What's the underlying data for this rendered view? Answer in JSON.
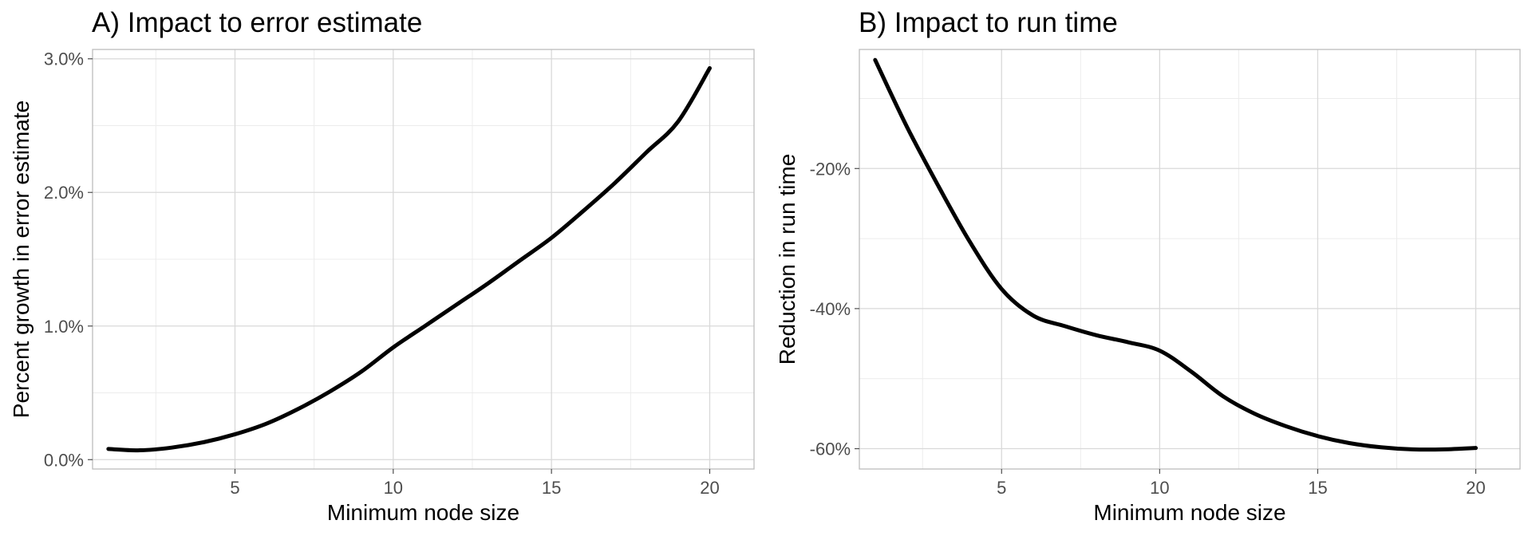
{
  "chart_data": [
    {
      "type": "line",
      "title": "A) Impact to error estimate",
      "xlabel": "Minimum node size",
      "ylabel": "Percent growth in error estimate",
      "xlim": [
        0.5,
        21.4
      ],
      "ylim": [
        -0.0007,
        0.0307
      ],
      "x_ticks": [
        5,
        10,
        15,
        20
      ],
      "x_tick_labels": [
        "5",
        "10",
        "15",
        "20"
      ],
      "y_ticks": [
        0,
        0.01,
        0.02,
        0.03
      ],
      "y_tick_labels": [
        "0.0%",
        "1.0%",
        "2.0%",
        "3.0%"
      ],
      "x_minor_ticks": [
        2.5,
        7.5,
        12.5,
        17.5
      ],
      "y_minor_ticks": [
        0.005,
        0.015,
        0.025
      ],
      "grid": true,
      "series": [
        {
          "color": "#000000",
          "x": [
            1,
            2,
            3,
            4,
            5,
            6,
            7,
            8,
            9,
            10,
            11,
            12,
            13,
            14,
            15,
            16,
            17,
            18,
            19,
            20
          ],
          "y": [
            0.0008,
            0.0007,
            0.0009,
            0.0013,
            0.0019,
            0.0027,
            0.0038,
            0.0051,
            0.0066,
            0.0084,
            0.01,
            0.0116,
            0.0132,
            0.0149,
            0.0166,
            0.0186,
            0.0207,
            0.023,
            0.0253,
            0.0293
          ]
        }
      ]
    },
    {
      "type": "line",
      "title": "B) Impact to run time",
      "xlabel": "Minimum node size",
      "ylabel": "Reduction in run time",
      "xlim": [
        0.5,
        21.4
      ],
      "ylim": [
        -0.629,
        -0.03
      ],
      "x_ticks": [
        5,
        10,
        15,
        20
      ],
      "x_tick_labels": [
        "5",
        "10",
        "15",
        "20"
      ],
      "y_ticks": [
        -0.6,
        -0.4,
        -0.2
      ],
      "y_tick_labels": [
        "-60%",
        "-40%",
        "-20%"
      ],
      "x_minor_ticks": [
        2.5,
        7.5,
        12.5,
        17.5
      ],
      "y_minor_ticks": [
        -0.5,
        -0.3,
        -0.1
      ],
      "grid": true,
      "series": [
        {
          "color": "#000000",
          "x": [
            1,
            2,
            3,
            4,
            5,
            6,
            7,
            8,
            9,
            10,
            11,
            12,
            13,
            14,
            15,
            16,
            17,
            18,
            19,
            20
          ],
          "y": [
            -0.045,
            -0.14,
            -0.225,
            -0.305,
            -0.372,
            -0.41,
            -0.425,
            -0.438,
            -0.448,
            -0.46,
            -0.49,
            -0.525,
            -0.55,
            -0.568,
            -0.582,
            -0.592,
            -0.598,
            -0.601,
            -0.601,
            -0.599
          ]
        }
      ]
    }
  ]
}
